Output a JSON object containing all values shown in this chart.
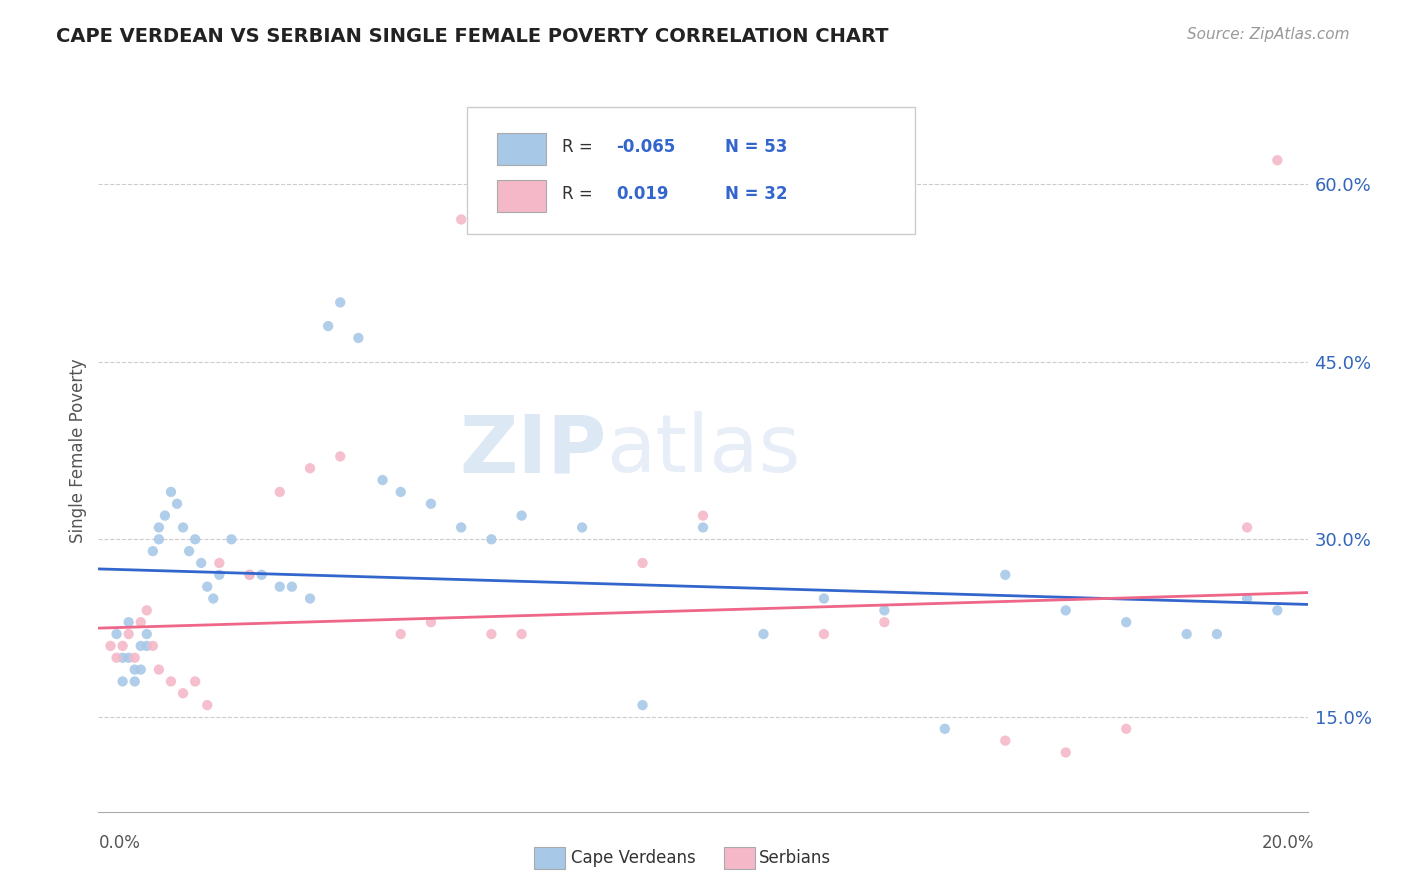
{
  "title": "CAPE VERDEAN VS SERBIAN SINGLE FEMALE POVERTY CORRELATION CHART",
  "source": "Source: ZipAtlas.com",
  "ylabel": "Single Female Poverty",
  "right_yticks": [
    "15.0%",
    "30.0%",
    "45.0%",
    "60.0%"
  ],
  "right_ytick_vals": [
    0.15,
    0.3,
    0.45,
    0.6
  ],
  "xmin": 0.0,
  "xmax": 0.2,
  "ymin": 0.07,
  "ymax": 0.68,
  "watermark_zip": "ZIP",
  "watermark_atlas": "atlas",
  "blue_color": "#a8c8e8",
  "pink_color": "#f4b8c8",
  "blue_line_color": "#3366cc",
  "pink_line_color": "#ee6688",
  "legend_label1": "R = -0.065  N = 53",
  "legend_label2": "R =  0.019  N = 32",
  "cape_verdean_x": [
    0.003,
    0.004,
    0.004,
    0.005,
    0.005,
    0.006,
    0.006,
    0.007,
    0.007,
    0.008,
    0.008,
    0.009,
    0.01,
    0.01,
    0.011,
    0.012,
    0.013,
    0.014,
    0.015,
    0.016,
    0.017,
    0.018,
    0.019,
    0.02,
    0.022,
    0.025,
    0.027,
    0.03,
    0.032,
    0.035,
    0.038,
    0.04,
    0.043,
    0.047,
    0.05,
    0.055,
    0.06,
    0.065,
    0.07,
    0.08,
    0.09,
    0.1,
    0.11,
    0.12,
    0.13,
    0.14,
    0.15,
    0.16,
    0.17,
    0.18,
    0.185,
    0.19,
    0.195
  ],
  "cape_verdean_y": [
    0.22,
    0.2,
    0.18,
    0.2,
    0.23,
    0.19,
    0.18,
    0.21,
    0.19,
    0.22,
    0.21,
    0.29,
    0.31,
    0.3,
    0.32,
    0.34,
    0.33,
    0.31,
    0.29,
    0.3,
    0.28,
    0.26,
    0.25,
    0.27,
    0.3,
    0.27,
    0.27,
    0.26,
    0.26,
    0.25,
    0.48,
    0.5,
    0.47,
    0.35,
    0.34,
    0.33,
    0.31,
    0.3,
    0.32,
    0.31,
    0.16,
    0.31,
    0.22,
    0.25,
    0.24,
    0.14,
    0.27,
    0.24,
    0.23,
    0.22,
    0.22,
    0.25,
    0.24
  ],
  "serbian_x": [
    0.002,
    0.003,
    0.004,
    0.005,
    0.006,
    0.007,
    0.008,
    0.009,
    0.01,
    0.012,
    0.014,
    0.016,
    0.018,
    0.02,
    0.025,
    0.03,
    0.035,
    0.04,
    0.05,
    0.055,
    0.06,
    0.065,
    0.07,
    0.09,
    0.1,
    0.12,
    0.13,
    0.15,
    0.16,
    0.17,
    0.19,
    0.195
  ],
  "serbian_y": [
    0.21,
    0.2,
    0.21,
    0.22,
    0.2,
    0.23,
    0.24,
    0.21,
    0.19,
    0.18,
    0.17,
    0.18,
    0.16,
    0.28,
    0.27,
    0.34,
    0.36,
    0.37,
    0.22,
    0.23,
    0.57,
    0.22,
    0.22,
    0.28,
    0.32,
    0.22,
    0.23,
    0.13,
    0.12,
    0.14,
    0.31,
    0.62
  ]
}
